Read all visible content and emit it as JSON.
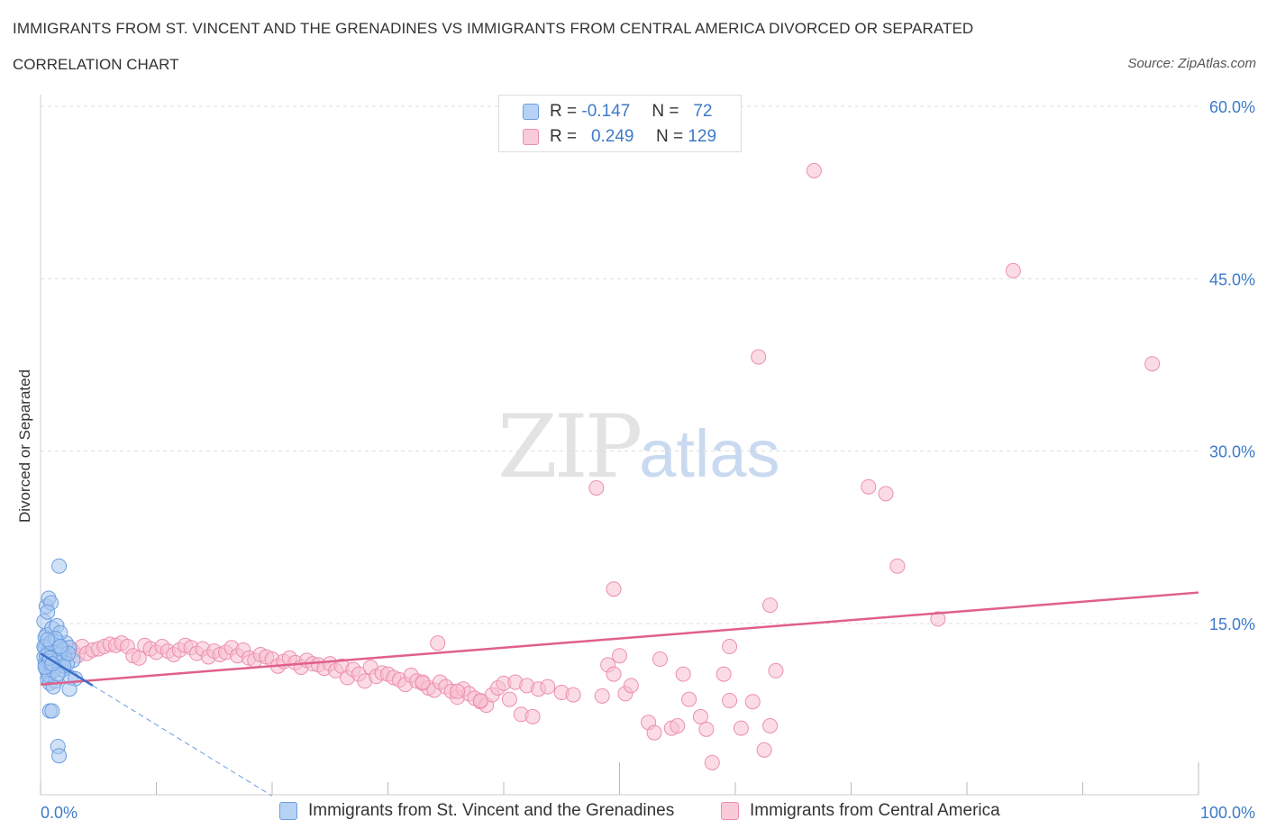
{
  "header": {
    "title": "IMMIGRANTS FROM ST. VINCENT AND THE GRENADINES VS IMMIGRANTS FROM CENTRAL AMERICA DIVORCED OR SEPARATED",
    "subtitle": "CORRELATION CHART",
    "source": "Source: ZipAtlas.com"
  },
  "legend": {
    "rows": [
      {
        "r_label": "R =",
        "r_value": "-0.147",
        "n_label": "N =",
        "n_value": "72"
      },
      {
        "r_label": "R =",
        "r_value": "0.249",
        "n_label": "N =",
        "n_value": "129"
      }
    ]
  },
  "watermark": {
    "zip": "ZIP",
    "atlas": "atlas"
  },
  "colors": {
    "blue_fill": "#a9c8f0",
    "blue_stroke": "#6b9ee0",
    "blue_line": "#3a70c8",
    "pink_fill": "#f7c0d0",
    "pink_stroke": "#ec8fae",
    "pink_line": "#e0608a",
    "tick_label": "#3d7ac8",
    "grid": "#dddddd"
  },
  "chart_data": {
    "type": "scatter",
    "title": "IMMIGRANTS FROM ST. VINCENT AND THE GRENADINES VS IMMIGRANTS FROM CENTRAL AMERICA DIVORCED OR SEPARATED",
    "xlabel": "",
    "ylabel": "Divorced or Separated",
    "xlim": [
      0,
      100
    ],
    "ylim": [
      0,
      60
    ],
    "x_tick_labels": [
      "0.0%",
      "100.0%"
    ],
    "y_ticks": [
      15,
      30,
      45,
      60
    ],
    "y_tick_labels": [
      "15.0%",
      "30.0%",
      "45.0%",
      "60.0%"
    ],
    "grid": true,
    "legend_position": "top-center",
    "series": [
      {
        "name": "Immigrants from St. Vincent and the Grenadines",
        "color": "#a9c8f0",
        "trend": {
          "x": [
            0,
            20
          ],
          "y": [
            12.4,
            0
          ],
          "solid_until_x": 4.5
        },
        "points": [
          [
            0.3,
            12.1
          ],
          [
            0.4,
            11.5
          ],
          [
            0.5,
            13.2
          ],
          [
            0.6,
            10.8
          ],
          [
            0.7,
            12.6
          ],
          [
            0.8,
            11.9
          ],
          [
            0.5,
            14.0
          ],
          [
            0.9,
            12.3
          ],
          [
            1.0,
            13.5
          ],
          [
            1.1,
            11.2
          ],
          [
            0.6,
            10.2
          ],
          [
            0.8,
            9.8
          ],
          [
            1.2,
            12.8
          ],
          [
            1.3,
            11.6
          ],
          [
            0.4,
            13.8
          ],
          [
            1.5,
            12.0
          ],
          [
            1.6,
            13.1
          ],
          [
            1.8,
            11.4
          ],
          [
            2.0,
            12.5
          ],
          [
            2.2,
            13.3
          ],
          [
            0.3,
            15.2
          ],
          [
            0.5,
            16.5
          ],
          [
            0.7,
            17.2
          ],
          [
            0.9,
            16.8
          ],
          [
            0.6,
            16.0
          ],
          [
            1.0,
            14.6
          ],
          [
            1.4,
            14.8
          ],
          [
            1.7,
            14.2
          ],
          [
            2.5,
            12.9
          ],
          [
            2.8,
            11.8
          ],
          [
            1.6,
            20.0
          ],
          [
            0.8,
            7.4
          ],
          [
            1.0,
            7.4
          ],
          [
            1.5,
            4.3
          ],
          [
            1.6,
            3.5
          ],
          [
            2.6,
            10.3
          ],
          [
            3.0,
            10.2
          ],
          [
            2.5,
            9.3
          ],
          [
            1.3,
            10.0
          ],
          [
            1.1,
            9.5
          ],
          [
            0.5,
            11.0
          ],
          [
            0.7,
            10.5
          ],
          [
            0.9,
            11.3
          ],
          [
            1.1,
            12.1
          ],
          [
            1.3,
            12.6
          ],
          [
            1.5,
            11.7
          ],
          [
            1.7,
            12.2
          ],
          [
            1.9,
            11.0
          ],
          [
            2.1,
            12.0
          ],
          [
            2.3,
            11.5
          ],
          [
            0.4,
            12.9
          ],
          [
            0.6,
            12.4
          ],
          [
            0.8,
            13.0
          ],
          [
            1.0,
            12.7
          ],
          [
            1.2,
            11.9
          ],
          [
            1.4,
            13.4
          ],
          [
            1.6,
            12.3
          ],
          [
            1.8,
            12.8
          ],
          [
            2.0,
            11.3
          ],
          [
            2.4,
            12.4
          ],
          [
            0.3,
            13.0
          ],
          [
            0.5,
            12.2
          ],
          [
            0.7,
            11.7
          ],
          [
            0.9,
            13.3
          ],
          [
            1.1,
            10.9
          ],
          [
            1.3,
            13.7
          ],
          [
            1.5,
            10.6
          ],
          [
            1.7,
            13.0
          ],
          [
            0.4,
            11.2
          ],
          [
            0.6,
            13.6
          ],
          [
            0.8,
            12.0
          ],
          [
            1.0,
            11.5
          ]
        ]
      },
      {
        "name": "Immigrants from Central America",
        "color": "#f7c0d0",
        "trend": {
          "x": [
            0,
            100
          ],
          "y": [
            9.7,
            17.7
          ]
        },
        "points": [
          [
            0.8,
            12.7
          ],
          [
            1.2,
            12.4
          ],
          [
            1.6,
            12.5
          ],
          [
            2.0,
            12.1
          ],
          [
            2.4,
            12.9
          ],
          [
            2.8,
            12.6
          ],
          [
            3.2,
            12.2
          ],
          [
            3.6,
            13.0
          ],
          [
            4.0,
            12.4
          ],
          [
            4.5,
            12.7
          ],
          [
            5.0,
            12.8
          ],
          [
            5.5,
            13.0
          ],
          [
            6.0,
            13.2
          ],
          [
            6.5,
            13.1
          ],
          [
            7.0,
            13.3
          ],
          [
            7.5,
            13.0
          ],
          [
            8.0,
            12.2
          ],
          [
            8.5,
            12.0
          ],
          [
            9.0,
            13.1
          ],
          [
            9.5,
            12.8
          ],
          [
            10.0,
            12.5
          ],
          [
            10.5,
            13.0
          ],
          [
            11.0,
            12.6
          ],
          [
            11.5,
            12.3
          ],
          [
            12.0,
            12.7
          ],
          [
            12.5,
            13.1
          ],
          [
            13.0,
            12.9
          ],
          [
            13.5,
            12.4
          ],
          [
            14.0,
            12.8
          ],
          [
            14.5,
            12.1
          ],
          [
            15.0,
            12.6
          ],
          [
            15.5,
            12.3
          ],
          [
            16.0,
            12.5
          ],
          [
            16.5,
            12.9
          ],
          [
            17.0,
            12.2
          ],
          [
            17.5,
            12.7
          ],
          [
            18.0,
            12.0
          ],
          [
            18.5,
            11.8
          ],
          [
            19.0,
            12.3
          ],
          [
            19.5,
            12.1
          ],
          [
            20.0,
            11.9
          ],
          [
            20.5,
            11.3
          ],
          [
            21.0,
            11.7
          ],
          [
            21.5,
            12.0
          ],
          [
            22.0,
            11.6
          ],
          [
            22.5,
            11.2
          ],
          [
            23.0,
            11.8
          ],
          [
            23.5,
            11.5
          ],
          [
            24.0,
            11.4
          ],
          [
            24.5,
            11.1
          ],
          [
            25.0,
            11.5
          ],
          [
            25.5,
            10.9
          ],
          [
            26.0,
            11.3
          ],
          [
            26.5,
            10.3
          ],
          [
            27.0,
            11.0
          ],
          [
            27.5,
            10.6
          ],
          [
            28.0,
            10.0
          ],
          [
            28.5,
            11.2
          ],
          [
            29.0,
            10.4
          ],
          [
            29.5,
            10.7
          ],
          [
            30.0,
            10.6
          ],
          [
            30.5,
            10.3
          ],
          [
            31.0,
            10.1
          ],
          [
            31.5,
            9.7
          ],
          [
            32.0,
            10.5
          ],
          [
            32.5,
            10.0
          ],
          [
            33.0,
            9.8
          ],
          [
            33.5,
            9.4
          ],
          [
            34.0,
            9.2
          ],
          [
            34.5,
            9.9
          ],
          [
            35.0,
            9.5
          ],
          [
            35.5,
            9.1
          ],
          [
            36.0,
            8.6
          ],
          [
            36.5,
            9.3
          ],
          [
            37.0,
            8.9
          ],
          [
            37.5,
            8.5
          ],
          [
            38.0,
            8.2
          ],
          [
            38.5,
            7.9
          ],
          [
            39.0,
            8.8
          ],
          [
            39.5,
            9.4
          ],
          [
            40.0,
            9.8
          ],
          [
            40.5,
            8.4
          ],
          [
            41.0,
            9.9
          ],
          [
            41.5,
            7.1
          ],
          [
            42.0,
            9.6
          ],
          [
            42.5,
            6.9
          ],
          [
            43.0,
            9.3
          ],
          [
            34.3,
            13.3
          ],
          [
            43.8,
            9.5
          ],
          [
            48.5,
            8.7
          ],
          [
            48.0,
            26.8
          ],
          [
            49.5,
            18.0
          ],
          [
            50.0,
            12.2
          ],
          [
            49.0,
            11.4
          ],
          [
            49.5,
            10.6
          ],
          [
            50.5,
            8.9
          ],
          [
            51.0,
            9.6
          ],
          [
            52.5,
            6.4
          ],
          [
            53.0,
            5.5
          ],
          [
            53.5,
            11.9
          ],
          [
            54.5,
            5.9
          ],
          [
            55.0,
            6.1
          ],
          [
            55.5,
            10.6
          ],
          [
            56.0,
            8.4
          ],
          [
            57.0,
            6.9
          ],
          [
            57.5,
            5.8
          ],
          [
            58.0,
            2.9
          ],
          [
            59.0,
            10.6
          ],
          [
            59.5,
            8.3
          ],
          [
            59.5,
            13.0
          ],
          [
            60.5,
            5.9
          ],
          [
            61.5,
            8.2
          ],
          [
            62.0,
            38.2
          ],
          [
            63.0,
            16.6
          ],
          [
            63.5,
            10.9
          ],
          [
            62.5,
            4.0
          ],
          [
            63.0,
            6.1
          ],
          [
            66.8,
            54.4
          ],
          [
            71.5,
            26.9
          ],
          [
            73.0,
            26.3
          ],
          [
            74.0,
            20.0
          ],
          [
            77.5,
            15.4
          ],
          [
            84.0,
            45.7
          ],
          [
            96.0,
            37.6
          ],
          [
            38.0,
            8.3
          ],
          [
            36.0,
            9.1
          ],
          [
            33.0,
            9.9
          ],
          [
            45.0,
            9.0
          ],
          [
            46.0,
            8.8
          ]
        ]
      }
    ]
  },
  "bottom_legend": [
    {
      "label": "Immigrants from St. Vincent and the Grenadines"
    },
    {
      "label": "Immigrants from Central America"
    }
  ]
}
